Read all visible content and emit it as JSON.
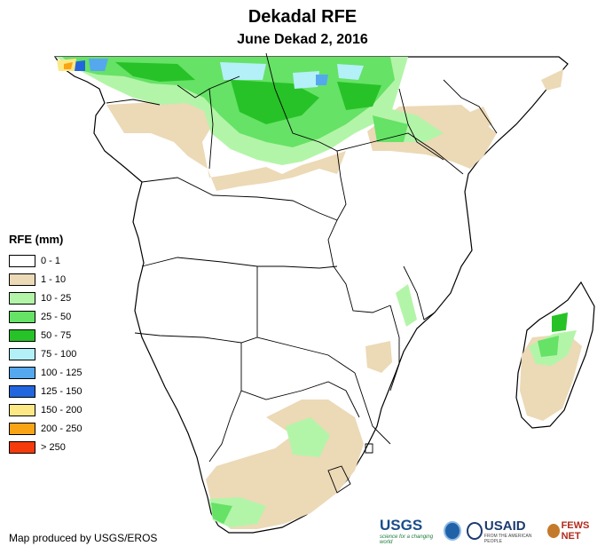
{
  "title": "Dekadal RFE",
  "subtitle": "June Dekad 2, 2016",
  "legend": {
    "title": "RFE (mm)",
    "items": [
      {
        "label": "0 - 1",
        "color": "#ffffff"
      },
      {
        "label": "1 - 10",
        "color": "#ecd9b6"
      },
      {
        "label": "10 - 25",
        "color": "#b3f5a8"
      },
      {
        "label": "25 - 50",
        "color": "#66e266"
      },
      {
        "label": "50 - 75",
        "color": "#27c227"
      },
      {
        "label": "75 - 100",
        "color": "#b4f0f8"
      },
      {
        "label": "100 - 125",
        "color": "#55a8ee"
      },
      {
        "label": "125 - 150",
        "color": "#2266dd"
      },
      {
        "label": "150 - 200",
        "color": "#fde886"
      },
      {
        "label": "200 - 250",
        "color": "#f9a415"
      },
      {
        "label": "> 250",
        "color": "#f53a0c"
      }
    ]
  },
  "credit": "Map produced by USGS/EROS",
  "logos": {
    "usgs": "USGS",
    "usgs_tagline": "science for a changing world",
    "noaa": "noaa-logo",
    "usaid": "USAID",
    "usaid_tagline": "FROM THE AMERICAN PEOPLE",
    "fews": "FEWS NET"
  }
}
